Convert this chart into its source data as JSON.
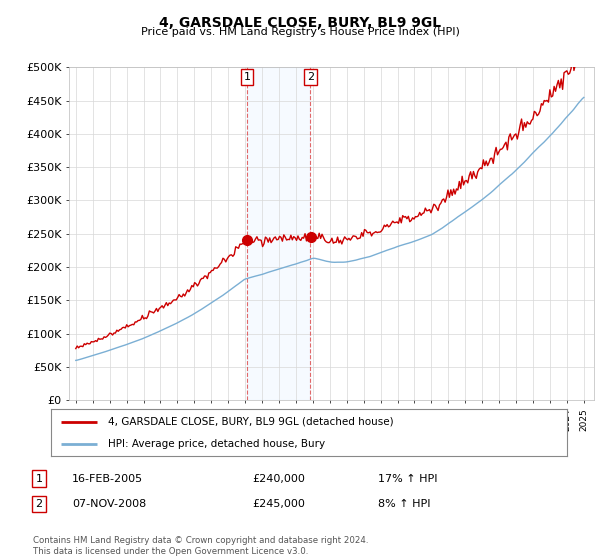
{
  "title": "4, GARSDALE CLOSE, BURY, BL9 9GL",
  "subtitle": "Price paid vs. HM Land Registry's House Price Index (HPI)",
  "ylabel_ticks": [
    "£0",
    "£50K",
    "£100K",
    "£150K",
    "£200K",
    "£250K",
    "£300K",
    "£350K",
    "£400K",
    "£450K",
    "£500K"
  ],
  "ytick_values": [
    0,
    50000,
    100000,
    150000,
    200000,
    250000,
    300000,
    350000,
    400000,
    450000,
    500000
  ],
  "ylim": [
    0,
    500000
  ],
  "sale1_year": 2005.12,
  "sale1_price": 240000,
  "sale1_label": "16-FEB-2005",
  "sale1_hpi": "17% ↑ HPI",
  "sale2_year": 2008.85,
  "sale2_price": 245000,
  "sale2_label": "07-NOV-2008",
  "sale2_hpi": "8% ↑ HPI",
  "line_color_property": "#cc0000",
  "line_color_hpi": "#7bafd4",
  "legend_property": "4, GARSDALE CLOSE, BURY, BL9 9GL (detached house)",
  "legend_hpi": "HPI: Average price, detached house, Bury",
  "footnote": "Contains HM Land Registry data © Crown copyright and database right 2024.\nThis data is licensed under the Open Government Licence v3.0.",
  "background_color": "#ffffff",
  "grid_color": "#d8d8d8",
  "shade_color": "#ddeeff",
  "vline_color": "#dd4444"
}
